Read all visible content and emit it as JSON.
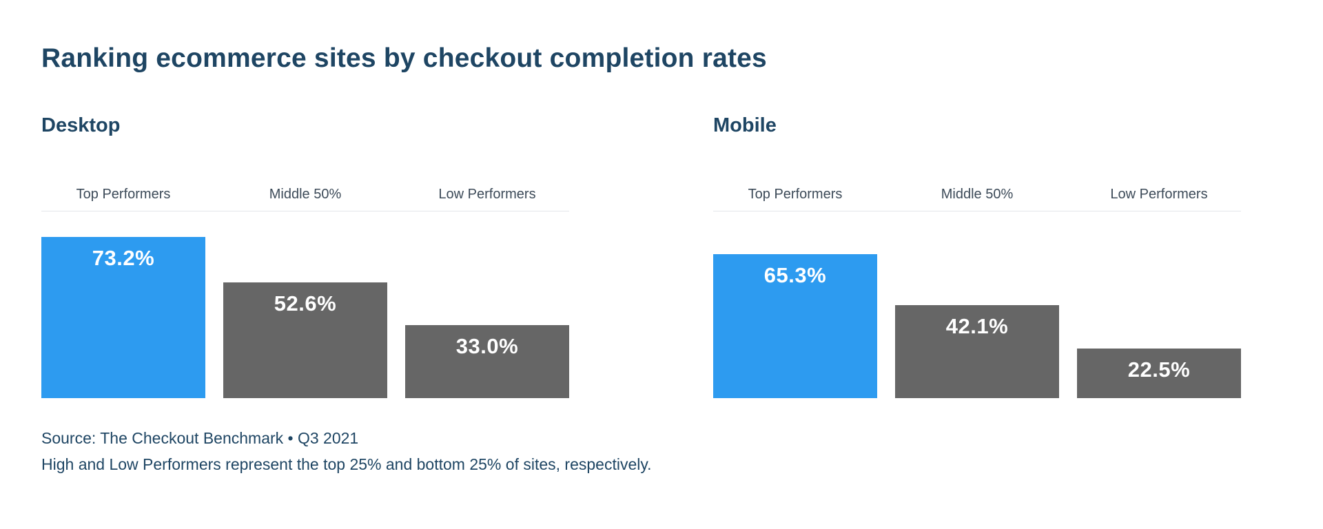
{
  "page": {
    "title": "Ranking ecommerce sites by checkout completion rates",
    "source_line1": "Source: The Checkout Benchmark • Q3 2021",
    "source_line2": "High and Low Performers represent the top 25% and bottom 25% of sites, respectively."
  },
  "colors": {
    "accent_blue": "#2D9BF0",
    "bar_gray": "#666666",
    "heading_navy": "#1E4563",
    "label_slate": "#3C4A58",
    "divider": "#E3E6E9"
  },
  "chart_data": [
    {
      "type": "bar",
      "title": "Desktop",
      "categories": [
        "Top Performers",
        "Middle 50%",
        "Low Performers"
      ],
      "values": [
        73.2,
        52.6,
        33.0
      ],
      "value_labels": [
        "73.2%",
        "52.6%",
        "33.0%"
      ],
      "ylim": [
        0,
        75
      ],
      "bar_colors": [
        "#2D9BF0",
        "#666666",
        "#666666"
      ],
      "grid": false,
      "legend": "none",
      "value_label_position": "inside-top"
    },
    {
      "type": "bar",
      "title": "Mobile",
      "categories": [
        "Top Performers",
        "Middle 50%",
        "Low Performers"
      ],
      "values": [
        65.3,
        42.1,
        22.5
      ],
      "value_labels": [
        "65.3%",
        "42.1%",
        "22.5%"
      ],
      "ylim": [
        0,
        75
      ],
      "bar_colors": [
        "#2D9BF0",
        "#666666",
        "666666"
      ],
      "grid": false,
      "legend": "none",
      "value_label_position": "inside-top"
    }
  ]
}
